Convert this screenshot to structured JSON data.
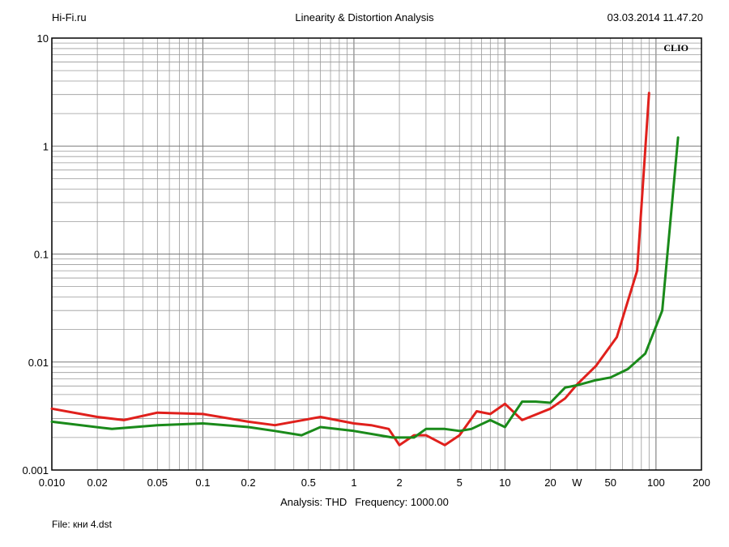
{
  "header": {
    "left": "Hi-Fi.ru",
    "title": "Linearity & Distortion Analysis",
    "datetime": "03.03.2014 11.47.20"
  },
  "footer": {
    "analysis": "Analysis: THD",
    "frequency": "Frequency: 1000.00",
    "file": "File: кни 4.dst"
  },
  "chart_data": {
    "type": "line",
    "title": "Linearity & Distortion Analysis",
    "brand_label": "CLIO",
    "x_scale": "log",
    "y_scale": "log",
    "xlim": [
      0.01,
      200
    ],
    "ylim": [
      0.001,
      10
    ],
    "x_ticks": [
      {
        "v": 0.01,
        "label": "0.010"
      },
      {
        "v": 0.02,
        "label": "0.02"
      },
      {
        "v": 0.05,
        "label": "0.05"
      },
      {
        "v": 0.1,
        "label": "0.1"
      },
      {
        "v": 0.2,
        "label": "0.2"
      },
      {
        "v": 0.5,
        "label": "0.5"
      },
      {
        "v": 1,
        "label": "1"
      },
      {
        "v": 2,
        "label": "2"
      },
      {
        "v": 5,
        "label": "5"
      },
      {
        "v": 10,
        "label": "10"
      },
      {
        "v": 20,
        "label": "20"
      },
      {
        "v": 30,
        "label": "W"
      },
      {
        "v": 50,
        "label": "50"
      },
      {
        "v": 100,
        "label": "100"
      },
      {
        "v": 200,
        "label": "200"
      }
    ],
    "y_ticks": [
      {
        "v": 10,
        "label": "10"
      },
      {
        "v": 1,
        "label": "1"
      },
      {
        "v": 0.1,
        "label": "0.1"
      },
      {
        "v": 0.01,
        "label": "0.01"
      },
      {
        "v": 0.001,
        "label": "0.001"
      }
    ],
    "grid": true,
    "series": [
      {
        "color": "#e0201c",
        "points": [
          [
            0.01,
            0.0037
          ],
          [
            0.02,
            0.0031
          ],
          [
            0.03,
            0.0029
          ],
          [
            0.05,
            0.0034
          ],
          [
            0.1,
            0.0033
          ],
          [
            0.2,
            0.0028
          ],
          [
            0.3,
            0.0026
          ],
          [
            0.6,
            0.0031
          ],
          [
            1,
            0.0027
          ],
          [
            1.3,
            0.0026
          ],
          [
            1.7,
            0.0024
          ],
          [
            2,
            0.0017
          ],
          [
            2.5,
            0.0021
          ],
          [
            3,
            0.0021
          ],
          [
            4,
            0.0017
          ],
          [
            5,
            0.0021
          ],
          [
            6.5,
            0.0035
          ],
          [
            8,
            0.0033
          ],
          [
            10,
            0.0041
          ],
          [
            13,
            0.0029
          ],
          [
            20,
            0.0037
          ],
          [
            25,
            0.0046
          ],
          [
            30,
            0.0062
          ],
          [
            40,
            0.0092
          ],
          [
            55,
            0.017
          ],
          [
            75,
            0.07
          ],
          [
            90,
            3.1
          ]
        ]
      },
      {
        "color": "#1a8a1a",
        "points": [
          [
            0.01,
            0.0028
          ],
          [
            0.025,
            0.0024
          ],
          [
            0.05,
            0.0026
          ],
          [
            0.1,
            0.0027
          ],
          [
            0.2,
            0.0025
          ],
          [
            0.3,
            0.0023
          ],
          [
            0.45,
            0.0021
          ],
          [
            0.6,
            0.0025
          ],
          [
            1,
            0.0023
          ],
          [
            1.8,
            0.002
          ],
          [
            2.5,
            0.002
          ],
          [
            3,
            0.0024
          ],
          [
            4,
            0.0024
          ],
          [
            5,
            0.0023
          ],
          [
            6,
            0.0024
          ],
          [
            8,
            0.0029
          ],
          [
            10,
            0.0025
          ],
          [
            13,
            0.0043
          ],
          [
            16,
            0.0043
          ],
          [
            20,
            0.0042
          ],
          [
            25,
            0.0058
          ],
          [
            30,
            0.0061
          ],
          [
            40,
            0.0068
          ],
          [
            50,
            0.0072
          ],
          [
            65,
            0.0086
          ],
          [
            85,
            0.012
          ],
          [
            110,
            0.03
          ],
          [
            140,
            1.2
          ]
        ]
      }
    ]
  }
}
